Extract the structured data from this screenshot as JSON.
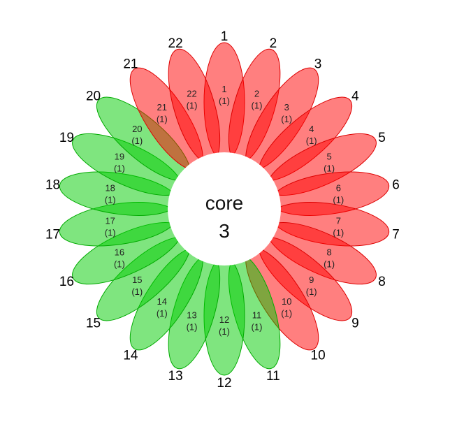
{
  "diagram": {
    "core": {
      "label": "core",
      "count": "3"
    },
    "petals": [
      {
        "name": "1",
        "count": "(1)",
        "color": "red"
      },
      {
        "name": "2",
        "count": "(1)",
        "color": "red"
      },
      {
        "name": "3",
        "count": "(1)",
        "color": "red"
      },
      {
        "name": "4",
        "count": "(1)",
        "color": "red"
      },
      {
        "name": "5",
        "count": "(1)",
        "color": "red"
      },
      {
        "name": "6",
        "count": "(1)",
        "color": "red"
      },
      {
        "name": "7",
        "count": "(1)",
        "color": "red"
      },
      {
        "name": "8",
        "count": "(1)",
        "color": "red"
      },
      {
        "name": "9",
        "count": "(1)",
        "color": "red"
      },
      {
        "name": "10",
        "count": "(1)",
        "color": "red"
      },
      {
        "name": "11",
        "count": "(1)",
        "color": "green"
      },
      {
        "name": "12",
        "count": "(1)",
        "color": "green"
      },
      {
        "name": "13",
        "count": "(1)",
        "color": "green"
      },
      {
        "name": "14",
        "count": "(1)",
        "color": "green"
      },
      {
        "name": "15",
        "count": "(1)",
        "color": "green"
      },
      {
        "name": "16",
        "count": "(1)",
        "color": "green"
      },
      {
        "name": "17",
        "count": "(1)",
        "color": "green"
      },
      {
        "name": "18",
        "count": "(1)",
        "color": "green"
      },
      {
        "name": "19",
        "count": "(1)",
        "color": "green"
      },
      {
        "name": "20",
        "count": "(1)",
        "color": "green"
      },
      {
        "name": "21",
        "count": "(1)",
        "color": "red"
      },
      {
        "name": "22",
        "count": "(1)",
        "color": "red"
      }
    ],
    "colors": {
      "red_fill": "#ff0000",
      "red_stroke": "#dd0000",
      "green_fill": "#00cc00",
      "green_stroke": "#00aa00",
      "center_fill": "#ffffff"
    }
  }
}
